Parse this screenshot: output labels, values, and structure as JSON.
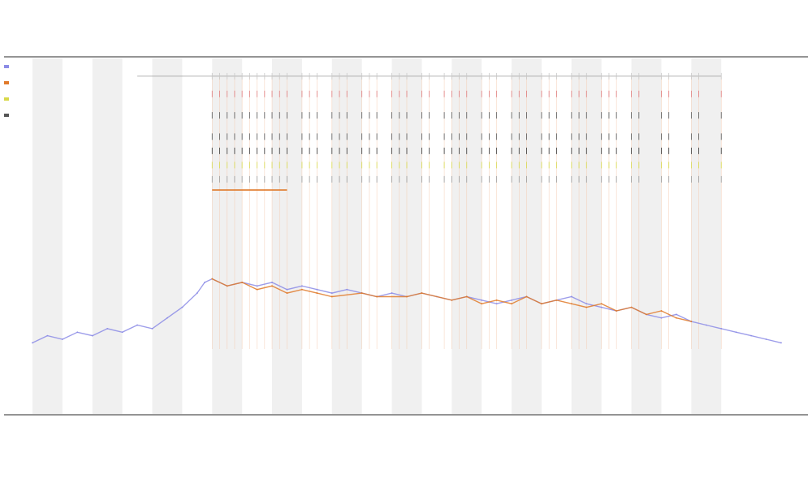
{
  "chart_data": {
    "type": "line",
    "title": "",
    "subtitle_1": "",
    "subtitle_2": "",
    "xlabel": "",
    "ylabel": "",
    "x_range": [
      0,
      100
    ],
    "y_range": [
      0,
      100
    ],
    "grid": false,
    "legend": "top-left",
    "shaded_bands": {
      "start": 0,
      "width": 4,
      "period": 8,
      "count": 12,
      "color": "#f0f0f0"
    },
    "series": [
      {
        "name": "",
        "color": "#8c8ce6",
        "x": [
          0,
          2,
          4,
          6,
          8,
          10,
          12,
          14,
          16,
          18,
          20,
          22,
          23,
          24,
          26,
          28,
          30,
          32,
          34,
          36,
          38,
          40,
          42,
          44,
          46,
          48,
          50,
          52,
          54,
          56,
          58,
          60,
          62,
          64,
          66,
          68,
          70,
          72,
          74,
          76,
          78,
          80,
          82,
          84,
          86,
          88,
          90,
          92,
          94,
          96,
          98,
          100
        ],
        "values": [
          20,
          22,
          21,
          23,
          22,
          24,
          23,
          25,
          24,
          27,
          30,
          34,
          37,
          38,
          36,
          37,
          36,
          37,
          35,
          36,
          35,
          34,
          35,
          34,
          33,
          34,
          33,
          34,
          33,
          32,
          33,
          32,
          31,
          32,
          33,
          31,
          32,
          33,
          31,
          30,
          29,
          30,
          28,
          27,
          28,
          26,
          25,
          24,
          23,
          22,
          21,
          20
        ]
      },
      {
        "name": "",
        "color": "#e07a2a",
        "x": [
          24,
          26,
          28,
          30,
          32,
          34,
          36,
          38,
          40,
          44,
          46,
          50,
          52,
          56,
          58,
          60,
          62,
          64,
          66,
          68,
          70,
          72,
          74,
          76,
          78,
          80,
          82,
          84,
          86,
          88
        ],
        "values": [
          38,
          36,
          37,
          35,
          36,
          34,
          35,
          34,
          33,
          34,
          33,
          33,
          34,
          32,
          33,
          31,
          32,
          31,
          33,
          31,
          32,
          31,
          30,
          31,
          29,
          30,
          28,
          29,
          27,
          26
        ]
      }
    ],
    "reference_line": {
      "x_start": 24,
      "x_end": 34,
      "value": 63,
      "color": "#e07a2a"
    },
    "event_marks": {
      "x_start": 24,
      "x_end": 92,
      "rows": [
        {
          "value": 95,
          "color": "#c8c8c8"
        },
        {
          "value": 90,
          "color": "#e07a7a"
        },
        {
          "value": 84,
          "color": "#555555"
        },
        {
          "value": 78,
          "color": "#555555"
        },
        {
          "value": 74,
          "color": "#333333"
        },
        {
          "value": 70,
          "color": "#d8d84a"
        },
        {
          "value": 66,
          "color": "#999999"
        }
      ],
      "events": [
        24,
        25,
        26,
        27,
        28,
        29,
        30,
        31,
        32,
        33,
        34,
        36,
        37,
        38,
        40,
        41,
        42,
        44,
        45,
        46,
        48,
        49,
        50,
        52,
        53,
        55,
        56,
        57,
        58,
        60,
        61,
        62,
        64,
        65,
        66,
        68,
        69,
        70,
        72,
        73,
        74,
        76,
        77,
        78,
        80,
        81,
        84,
        85,
        88,
        89,
        92
      ]
    },
    "tick_labels_x": []
  }
}
